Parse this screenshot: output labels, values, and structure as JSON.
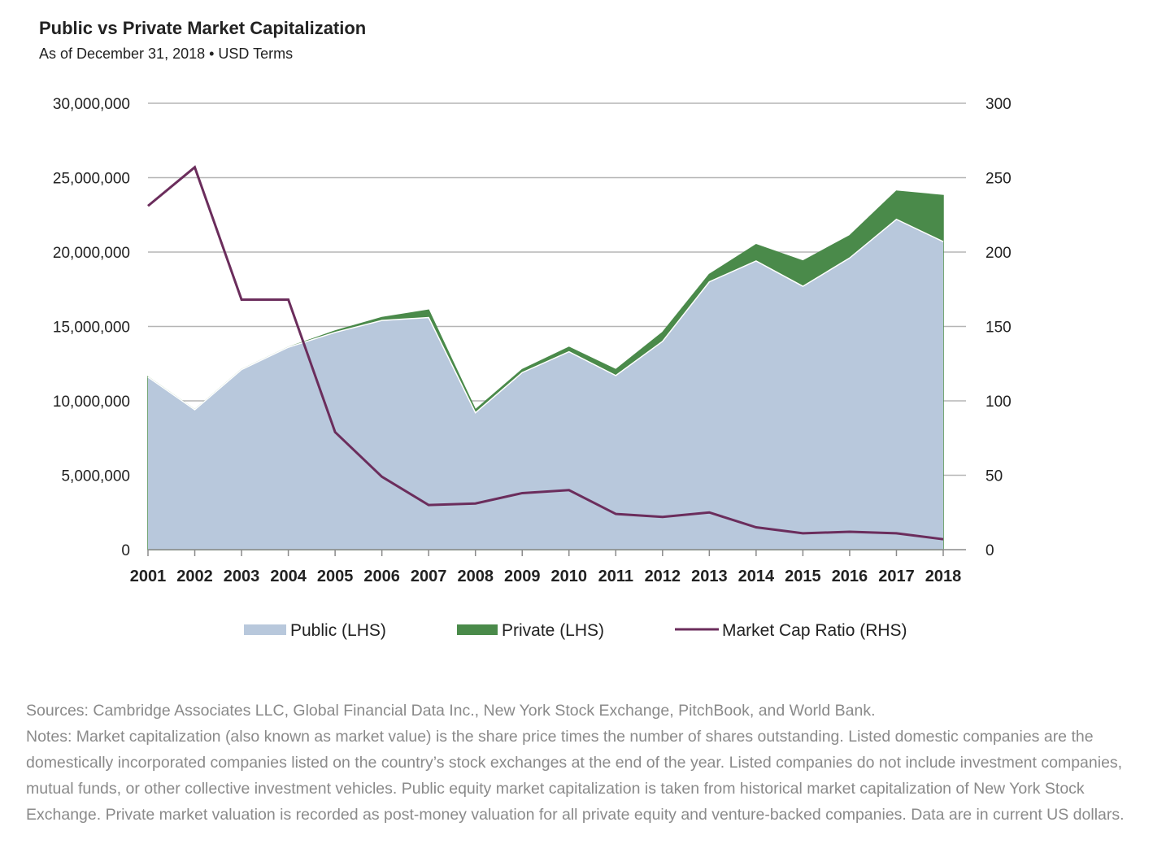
{
  "title": "Public vs Private Market Capitalization",
  "subtitle": "As of December 31, 2018 • USD Terms",
  "chart_data": {
    "type": "area",
    "x": [
      "2001",
      "2002",
      "2003",
      "2004",
      "2005",
      "2006",
      "2007",
      "2008",
      "2009",
      "2010",
      "2011",
      "2012",
      "2013",
      "2014",
      "2015",
      "2016",
      "2017",
      "2018"
    ],
    "y_left": {
      "ylim": [
        0,
        30000000
      ],
      "ticks": [
        "0",
        "5,000,000",
        "10,000,000",
        "15,000,000",
        "20,000,000",
        "25,000,000",
        "30,000,000"
      ]
    },
    "y_right": {
      "ylim": [
        0,
        300
      ],
      "ticks": [
        "0",
        "50",
        "100",
        "150",
        "200",
        "250",
        "300"
      ]
    },
    "series": [
      {
        "name": "Public (LHS)",
        "type": "area",
        "axis": "left",
        "color": "#b8c8dc",
        "values": [
          11600000,
          9400000,
          12100000,
          13600000,
          14600000,
          15400000,
          15600000,
          9200000,
          11900000,
          13300000,
          11700000,
          14000000,
          18000000,
          19400000,
          17700000,
          19600000,
          22200000,
          20700000
        ]
      },
      {
        "name": "Private (LHS)",
        "type": "stacked-area",
        "axis": "left",
        "color": "#4a8a4a",
        "values": [
          0,
          0,
          0,
          0,
          100000,
          200000,
          500000,
          200000,
          200000,
          300000,
          400000,
          600000,
          500000,
          1100000,
          1700000,
          1500000,
          1900000,
          3100000
        ]
      },
      {
        "name": "Market Cap Ratio (RHS)",
        "type": "line",
        "axis": "right",
        "color": "#6b2d5c",
        "values": [
          231,
          257,
          168,
          168,
          79,
          49,
          30,
          31,
          38,
          40,
          24,
          22,
          25,
          15,
          11,
          12,
          11,
          7
        ]
      }
    ],
    "legend": "bottom",
    "grid": true
  },
  "footnote": {
    "sources": "Sources: Cambridge Associates LLC, Global Financial Data Inc., New York Stock Exchange, PitchBook, and World Bank.",
    "notes": "Notes: Market capitalization (also known as market value) is the share price times the number of shares outstanding. Listed domestic companies are the domestically incorporated companies listed on the country’s stock exchanges at the end of the year. Listed companies do not include investment companies, mutual funds, or other collective investment vehicles. Public equity market capitalization is taken from historical market capitalization of New York Stock Exchange. Private market valuation is recorded as post-money valuation for all private equity and venture-backed companies. Data are in current US dollars."
  }
}
